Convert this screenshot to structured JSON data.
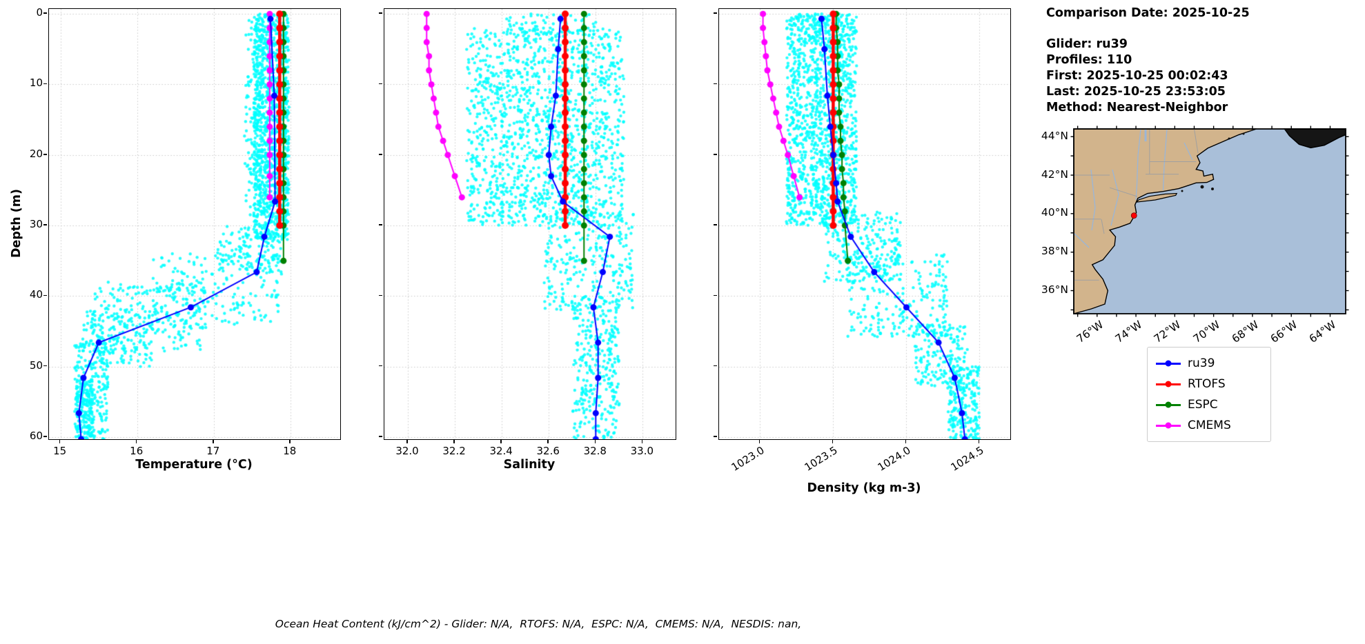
{
  "info_panel": {
    "comparison_date": "Comparison Date: 2025-10-25",
    "glider": "Glider: ru39",
    "profiles": "Profiles: 110",
    "first": "First: 2025-10-25 00:02:43",
    "last": "Last: 2025-10-25 23:53:05",
    "method": "Method: Nearest-Neighbor"
  },
  "footer": {
    "caption": "Ocean Heat Content (kJ/cm^2) - Glider: N/A,  RTOFS: N/A,  ESPC: N/A,  CMEMS: N/A,  NESDIS: nan,"
  },
  "legend": {
    "items": [
      {
        "label": "ru39",
        "color": "#0000ff"
      },
      {
        "label": "RTOFS",
        "color": "#ff0000"
      },
      {
        "label": "ESPC",
        "color": "#008000"
      },
      {
        "label": "CMEMS",
        "color": "#ff00ff"
      }
    ]
  },
  "map": {
    "ocean_color": "#a9bfd9",
    "land_color": "#d2b48c",
    "nova_scotia_color": "#151515",
    "lon_range": [
      -77.2,
      -63.2
    ],
    "lat_range": [
      34.8,
      44.4
    ],
    "lat_ticks": [
      {
        "v": 44,
        "label": "44°N"
      },
      {
        "v": 42,
        "label": "42°N"
      },
      {
        "v": 40,
        "label": "40°N"
      },
      {
        "v": 38,
        "label": "38°N"
      },
      {
        "v": 36,
        "label": "36°N"
      }
    ],
    "lon_ticks": [
      {
        "v": -76,
        "label": "76°W"
      },
      {
        "v": -74,
        "label": "74°W"
      },
      {
        "v": -72,
        "label": "72°W"
      },
      {
        "v": -70,
        "label": "70°W"
      },
      {
        "v": -68,
        "label": "68°W"
      },
      {
        "v": -66,
        "label": "66°W"
      },
      {
        "v": -64,
        "label": "64°W"
      }
    ],
    "marker": {
      "lon": -74.1,
      "lat": 39.9,
      "color": "#ff0000"
    }
  },
  "chart_data": [
    {
      "type": "scatter",
      "xlabel": "Temperature (°C)",
      "ylabel": "Depth (m)",
      "xlim": [
        14.85,
        18.65
      ],
      "ylim": [
        -0.7,
        60.3
      ],
      "show_ytick_labels": true,
      "xticks": [
        {
          "v": 15,
          "label": "15"
        },
        {
          "v": 16,
          "label": "16"
        },
        {
          "v": 17,
          "label": "17"
        },
        {
          "v": 18,
          "label": "18"
        }
      ],
      "yticks": [
        {
          "v": 0,
          "label": "0"
        },
        {
          "v": 10,
          "label": "10"
        },
        {
          "v": 20,
          "label": "20"
        },
        {
          "v": 30,
          "label": "30"
        },
        {
          "v": 40,
          "label": "40"
        },
        {
          "v": 50,
          "label": "50"
        },
        {
          "v": 60,
          "label": "60"
        }
      ],
      "scatter": {
        "name": "glider-observations",
        "color": "#00ffff",
        "bands": [
          {
            "d": [
              0,
              32
            ],
            "x": [
              17.52,
              17.98
            ],
            "n": 1300
          },
          {
            "d": [
              0,
              30
            ],
            "x": [
              17.4,
              17.64
            ],
            "n": 110
          },
          {
            "d": [
              30,
              37
            ],
            "x": [
              17.05,
              17.9
            ],
            "n": 140
          },
          {
            "d": [
              34,
              44
            ],
            "x": [
              16.2,
              17.85
            ],
            "n": 200
          },
          {
            "d": [
              38,
              48
            ],
            "x": [
              15.4,
              16.9
            ],
            "n": 220
          },
          {
            "d": [
              42,
              50
            ],
            "x": [
              15.3,
              16.2
            ],
            "n": 130
          },
          {
            "d": [
              46,
              60.3
            ],
            "x": [
              15.18,
              15.62
            ],
            "n": 240
          },
          {
            "d": [
              52,
              60.3
            ],
            "x": [
              15.2,
              15.42
            ],
            "n": 150
          }
        ]
      },
      "series": [
        {
          "name": "CMEMS",
          "color": "#ff00ff",
          "lw": 2,
          "ms": 4.5,
          "depths": [
            0,
            2,
            4,
            6,
            8,
            10,
            12,
            14,
            16,
            18,
            20,
            23,
            26
          ],
          "x_const": 17.73
        },
        {
          "name": "ESPC",
          "color": "#008000",
          "lw": 2,
          "ms": 4.5,
          "depths": [
            0,
            2,
            4,
            6,
            8,
            10,
            12,
            14,
            16,
            18,
            20,
            22,
            24,
            26,
            28,
            30,
            35
          ],
          "x_const": 17.91
        },
        {
          "name": "RTOFS",
          "color": "#ff0000",
          "lw": 4.5,
          "ms": 5,
          "depths": [
            0,
            2,
            4,
            6,
            8,
            10,
            12,
            14,
            16,
            18,
            20,
            22,
            24,
            26,
            28,
            30
          ],
          "x_const": 17.86
        },
        {
          "name": "ru39",
          "color": "#0000ff",
          "lw": 2,
          "ms": 4.5,
          "depths": [
            0.7,
            11.6,
            26.6,
            31.6,
            36.6,
            41.6,
            46.6,
            51.6,
            56.6,
            60.3
          ],
          "values": [
            17.74,
            17.79,
            17.8,
            17.66,
            17.56,
            16.7,
            15.5,
            15.3,
            15.24,
            15.27
          ]
        }
      ]
    },
    {
      "type": "scatter",
      "xlabel": "Salinity",
      "ylabel": "",
      "xlim": [
        31.9,
        33.14
      ],
      "ylim": [
        -0.7,
        60.3
      ],
      "show_ytick_labels": false,
      "xticks": [
        {
          "v": 32.0,
          "label": "32.0"
        },
        {
          "v": 32.2,
          "label": "32.2"
        },
        {
          "v": 32.4,
          "label": "32.4"
        },
        {
          "v": 32.6,
          "label": "32.6"
        },
        {
          "v": 32.8,
          "label": "32.8"
        },
        {
          "v": 33.0,
          "label": "33.0"
        }
      ],
      "yticks": [
        {
          "v": 0,
          "label": "0"
        },
        {
          "v": 10,
          "label": "10"
        },
        {
          "v": 20,
          "label": "20"
        },
        {
          "v": 30,
          "label": "30"
        },
        {
          "v": 40,
          "label": "40"
        },
        {
          "v": 50,
          "label": "50"
        },
        {
          "v": 60,
          "label": "60"
        }
      ],
      "scatter": {
        "name": "glider-observations",
        "color": "#00ffff",
        "bands": [
          {
            "d": [
              0,
              3
            ],
            "x": [
              32.42,
              32.8
            ],
            "n": 70
          },
          {
            "d": [
              2,
              30
            ],
            "x": [
              32.25,
              32.92
            ],
            "n": 1400
          },
          {
            "d": [
              28,
              42
            ],
            "x": [
              32.58,
              32.96
            ],
            "n": 260
          },
          {
            "d": [
              40,
              60.3
            ],
            "x": [
              32.7,
              32.9
            ],
            "n": 320
          }
        ]
      },
      "series": [
        {
          "name": "CMEMS",
          "color": "#ff00ff",
          "lw": 2,
          "ms": 4.5,
          "depths": [
            0,
            2,
            4,
            6,
            8,
            10,
            12,
            14,
            16,
            18,
            20,
            23,
            26
          ],
          "values": [
            32.08,
            32.08,
            32.08,
            32.09,
            32.09,
            32.1,
            32.11,
            32.12,
            32.13,
            32.15,
            32.17,
            32.2,
            32.23
          ]
        },
        {
          "name": "ESPC",
          "color": "#008000",
          "lw": 2,
          "ms": 4.5,
          "depths": [
            0,
            2,
            4,
            6,
            8,
            10,
            12,
            14,
            16,
            18,
            20,
            22,
            24,
            26,
            28,
            30,
            35
          ],
          "x_const": 32.75
        },
        {
          "name": "RTOFS",
          "color": "#ff0000",
          "lw": 4.5,
          "ms": 5,
          "depths": [
            0,
            2,
            4,
            6,
            8,
            10,
            12,
            14,
            16,
            18,
            20,
            22,
            24,
            26,
            28,
            30
          ],
          "x_const": 32.67
        },
        {
          "name": "ru39",
          "color": "#0000ff",
          "lw": 2,
          "ms": 4.5,
          "depths": [
            0.7,
            5,
            11.6,
            16,
            20,
            23,
            26.6,
            31.6,
            36.6,
            41.6,
            46.6,
            51.6,
            56.6,
            60.3
          ],
          "values": [
            32.65,
            32.64,
            32.63,
            32.61,
            32.6,
            32.61,
            32.66,
            32.86,
            32.83,
            32.79,
            32.81,
            32.81,
            32.8,
            32.8
          ]
        }
      ]
    },
    {
      "type": "scatter",
      "xlabel": "Density (kg m-3)",
      "ylabel": "",
      "xlim": [
        1022.72,
        1024.71
      ],
      "ylim": [
        -0.7,
        60.3
      ],
      "show_ytick_labels": false,
      "xtick_rotation": 32,
      "xticks": [
        {
          "v": 1023.0,
          "label": "1023.0"
        },
        {
          "v": 1023.5,
          "label": "1023.5"
        },
        {
          "v": 1024.0,
          "label": "1024.0"
        },
        {
          "v": 1024.5,
          "label": "1024.5"
        }
      ],
      "yticks": [
        {
          "v": 0,
          "label": "0"
        },
        {
          "v": 10,
          "label": "10"
        },
        {
          "v": 20,
          "label": "20"
        },
        {
          "v": 30,
          "label": "30"
        },
        {
          "v": 40,
          "label": "40"
        },
        {
          "v": 50,
          "label": "50"
        },
        {
          "v": 60,
          "label": "60"
        }
      ],
      "scatter": {
        "name": "glider-observations",
        "color": "#00ffff",
        "bands": [
          {
            "d": [
              0,
              30
            ],
            "x": [
              1023.18,
              1023.66
            ],
            "n": 1300
          },
          {
            "d": [
              0,
              4
            ],
            "x": [
              1023.3,
              1023.6
            ],
            "n": 60
          },
          {
            "d": [
              28,
              38
            ],
            "x": [
              1023.44,
              1023.96
            ],
            "n": 220
          },
          {
            "d": [
              34,
              46
            ],
            "x": [
              1023.6,
              1024.28
            ],
            "n": 240
          },
          {
            "d": [
              44,
              53
            ],
            "x": [
              1024.05,
              1024.42
            ],
            "n": 160
          },
          {
            "d": [
              50,
              60.3
            ],
            "x": [
              1024.28,
              1024.5
            ],
            "n": 240
          }
        ]
      },
      "series": [
        {
          "name": "CMEMS",
          "color": "#ff00ff",
          "lw": 2,
          "ms": 4.5,
          "depths": [
            0,
            2,
            4,
            6,
            8,
            10,
            12,
            14,
            16,
            18,
            20,
            23,
            26
          ],
          "values": [
            1023.02,
            1023.02,
            1023.03,
            1023.04,
            1023.05,
            1023.07,
            1023.09,
            1023.11,
            1023.13,
            1023.16,
            1023.19,
            1023.23,
            1023.27
          ]
        },
        {
          "name": "ESPC",
          "color": "#008000",
          "lw": 2,
          "ms": 4.5,
          "depths": [
            0,
            2,
            4,
            6,
            8,
            10,
            12,
            14,
            16,
            18,
            20,
            22,
            24,
            26,
            28,
            30,
            35
          ],
          "values": [
            1023.52,
            1023.52,
            1023.53,
            1023.53,
            1023.53,
            1023.54,
            1023.54,
            1023.54,
            1023.55,
            1023.55,
            1023.56,
            1023.56,
            1023.57,
            1023.57,
            1023.58,
            1023.58,
            1023.6
          ]
        },
        {
          "name": "RTOFS",
          "color": "#ff0000",
          "lw": 4.5,
          "ms": 5,
          "depths": [
            0,
            2,
            4,
            6,
            8,
            10,
            12,
            14,
            16,
            18,
            20,
            22,
            24,
            26,
            28,
            30
          ],
          "x_const": 1023.5
        },
        {
          "name": "ru39",
          "color": "#0000ff",
          "lw": 2,
          "ms": 4.5,
          "depths": [
            0.7,
            5,
            11.6,
            16,
            20,
            24,
            26.6,
            31.6,
            36.6,
            41.6,
            46.6,
            51.6,
            56.6,
            60.3
          ],
          "values": [
            1023.42,
            1023.44,
            1023.46,
            1023.48,
            1023.5,
            1023.52,
            1023.53,
            1023.62,
            1023.78,
            1024.0,
            1024.22,
            1024.33,
            1024.38,
            1024.4
          ]
        }
      ]
    }
  ]
}
